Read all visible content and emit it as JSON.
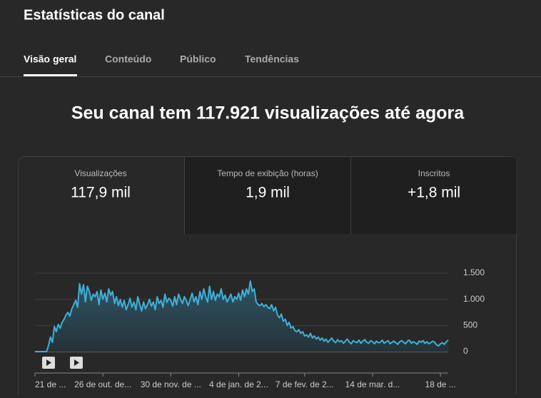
{
  "header": {
    "title": "Estatísticas do canal"
  },
  "tabs": [
    "Visão geral",
    "Conteúdo",
    "Público",
    "Tendências"
  ],
  "headline": "Seu canal tem 117.921 visualizações até agora",
  "metrics": [
    {
      "label": "Visualizações",
      "value": "117,9 mil"
    },
    {
      "label": "Tempo de exibição (horas)",
      "value": "1,9 mil"
    },
    {
      "label": "Inscritos",
      "value": "+1,8 mil"
    }
  ],
  "chart_data": {
    "type": "area",
    "color": "#3fb0d9",
    "values": [
      0,
      0,
      0,
      0,
      0,
      0,
      0,
      120,
      280,
      180,
      480,
      380,
      520,
      450,
      560,
      620,
      700,
      750,
      680,
      820,
      900,
      980,
      850,
      1300,
      1100,
      1280,
      950,
      1250,
      1150,
      980,
      1100,
      1050,
      1150,
      900,
      1180,
      1000,
      1120,
      950,
      1200,
      1080,
      1150,
      920,
      1050,
      880,
      1000,
      850,
      980,
      800,
      900,
      1020,
      850,
      950,
      800,
      1050,
      900,
      780,
      950,
      820,
      900,
      1000,
      870,
      950,
      800,
      1050,
      920,
      980,
      850,
      1100,
      940,
      1020,
      980,
      870,
      1050,
      900,
      1100,
      1000,
      920,
      1050,
      980,
      880,
      1000,
      1120,
      950,
      1050,
      900,
      1150,
      1000,
      1200,
      1050,
      950,
      1250,
      1000,
      1150,
      980,
      1100,
      1050,
      1200,
      1000,
      1080,
      950,
      1020,
      1100,
      950,
      1050,
      1000,
      1120,
      980,
      1180,
      1050,
      1200,
      1100,
      1350,
      1150,
      1200,
      950,
      900,
      880,
      920,
      860,
      900,
      850,
      820,
      900,
      780,
      850,
      700,
      650,
      720,
      580,
      620,
      500,
      560,
      450,
      480,
      400,
      380,
      420,
      350,
      380,
      300,
      320,
      280,
      350,
      260,
      300,
      240,
      280,
      220,
      260,
      200,
      240,
      180,
      220,
      260,
      200,
      170,
      230,
      190,
      210,
      160,
      200,
      240,
      180,
      150,
      210,
      190,
      170,
      220,
      160,
      200,
      230,
      180,
      160,
      210,
      190,
      150,
      200,
      170,
      180,
      220,
      160,
      190,
      210,
      150,
      180,
      200,
      170,
      140,
      190,
      210,
      180,
      150,
      200,
      220,
      160,
      190,
      170,
      140,
      200,
      180,
      210,
      160,
      190,
      150,
      170,
      200,
      180,
      130,
      110,
      150,
      170,
      140,
      190,
      220
    ],
    "xlim": [
      0,
      213
    ],
    "xticks": [
      {
        "value": 0,
        "label": "21 de ..."
      },
      {
        "value": 35,
        "label": "26 de out. de..."
      },
      {
        "value": 70,
        "label": "30 de nov. de ..."
      },
      {
        "value": 105,
        "label": "4 de jan. de 2..."
      },
      {
        "value": 139,
        "label": "7 de fev. de 2..."
      },
      {
        "value": 174,
        "label": "14 de mar. d..."
      },
      {
        "value": 209,
        "label": "18 de ..."
      }
    ],
    "ylim": [
      0,
      1500
    ],
    "yticks": [
      0,
      {
        "value": 500,
        "label": "500"
      },
      {
        "value": 1000,
        "label": "1.000"
      },
      {
        "value": 1500,
        "label": "1.500"
      }
    ],
    "grid": true
  }
}
